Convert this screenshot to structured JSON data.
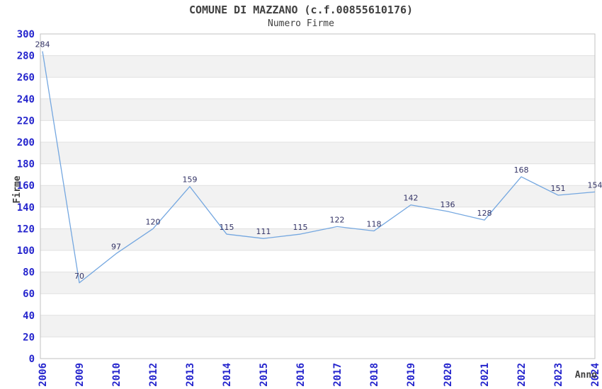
{
  "chart_data": {
    "type": "line",
    "title": "COMUNE DI MAZZANO (c.f.00855610176)",
    "subtitle": "Numero Firme",
    "xlabel": "Anno",
    "ylabel": "Firme",
    "categories": [
      "2006",
      "2009",
      "2010",
      "2012",
      "2013",
      "2014",
      "2015",
      "2016",
      "2017",
      "2018",
      "2019",
      "2020",
      "2021",
      "2022",
      "2023",
      "2024"
    ],
    "series": [
      {
        "name": "Numero Firme",
        "values": [
          284,
          70,
          97,
          120,
          159,
          115,
          111,
          115,
          122,
          118,
          142,
          136,
          128,
          168,
          151,
          154
        ]
      }
    ],
    "ylim": [
      0,
      300
    ],
    "ytick_step": 20,
    "yticks": [
      0,
      20,
      40,
      60,
      80,
      100,
      120,
      140,
      160,
      180,
      200,
      220,
      240,
      260,
      280,
      300
    ],
    "grid": "horizontal-lines-with-alternating-bands",
    "legend_position": "none",
    "point_labels_visible": true,
    "colors": {
      "line": "#74a7e0",
      "value_label": "#333366",
      "tick_label": "#2525cd",
      "axis_title": "#404040",
      "band": "#f2f2f2",
      "grid": "#e0e0e0",
      "border": "#c0c0c0",
      "background": "#ffffff"
    }
  }
}
